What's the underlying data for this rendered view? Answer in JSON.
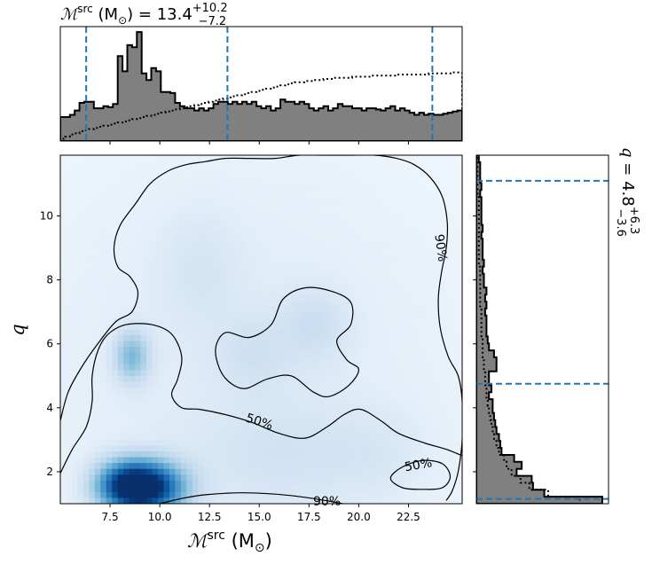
{
  "chart_data": {
    "type": "heatmap",
    "title": {
      "prefix": "ℳ",
      "sup": "src",
      "unit": " (M",
      "sun": "⊙",
      "close": ") = ",
      "value": "13.4",
      "plus": "+10.2",
      "minus": "−7.2"
    },
    "side_title": {
      "prefix": "q = ",
      "value": "4.8",
      "plus": "+6.3",
      "minus": "−3.6"
    },
    "xlabel": {
      "prefix": "ℳ",
      "sup": "src",
      "unit": " (M",
      "sun": "⊙",
      "close": ")"
    },
    "ylabel": "q",
    "xlim": [
      5.0,
      25.2
    ],
    "ylim": [
      1.0,
      11.9
    ],
    "xticks": [
      7.5,
      10.0,
      12.5,
      15.0,
      17.5,
      20.0,
      22.5
    ],
    "xtick_labels": [
      "7.5",
      "10.0",
      "12.5",
      "15.0",
      "17.5",
      "20.0",
      "22.5"
    ],
    "yticks": [
      2,
      4,
      6,
      8,
      10
    ],
    "ytick_labels": [
      "2",
      "4",
      "6",
      "8",
      "10"
    ],
    "colormap": [
      "#f7fbff",
      "#deebf7",
      "#c6dbef",
      "#9ecae1",
      "#6baed6",
      "#4292c6",
      "#2171b5",
      "#08519c",
      "#08306b"
    ],
    "density_blobs": [
      {
        "mc": 9.3,
        "q": 1.5,
        "smc": 1.3,
        "sq": 0.55,
        "amp": 1.0
      },
      {
        "mc": 8.2,
        "q": 1.6,
        "smc": 1.0,
        "sq": 0.5,
        "amp": 0.45
      },
      {
        "mc": 8.6,
        "q": 5.6,
        "smc": 0.6,
        "sq": 0.55,
        "amp": 0.33
      },
      {
        "mc": 17.8,
        "q": 6.6,
        "smc": 1.2,
        "sq": 0.8,
        "amp": 0.1
      },
      {
        "mc": 14.8,
        "q": 5.7,
        "smc": 1.3,
        "sq": 0.8,
        "amp": 0.08
      },
      {
        "mc": 12.0,
        "q": 8.4,
        "smc": 1.5,
        "sq": 1.3,
        "amp": 0.06
      },
      {
        "mc": 16.0,
        "q": 2.5,
        "smc": 3.0,
        "sq": 1.2,
        "amp": 0.07
      },
      {
        "mc": 21.0,
        "q": 2.5,
        "smc": 2.0,
        "sq": 1.0,
        "amp": 0.05
      }
    ],
    "density_floor": 0.08,
    "contour_labels": [
      {
        "text": "50%",
        "mc": 15.0,
        "q": 3.55,
        "rotate": 18
      },
      {
        "text": "50%",
        "mc": 23.0,
        "q": 2.2,
        "rotate": -10
      },
      {
        "text": "90%",
        "mc": 24.1,
        "q": 9.0,
        "rotate": 82
      },
      {
        "text": "90%",
        "mc": 18.4,
        "q": 1.05,
        "rotate": 0
      }
    ],
    "contours": [
      {
        "name": "contour-90-outer",
        "level": "90%",
        "closed": false,
        "points": [
          [
            5.0,
            3.6
          ],
          [
            5.4,
            4.5
          ],
          [
            6.1,
            5.3
          ],
          [
            7.0,
            6.1
          ],
          [
            7.8,
            6.7
          ],
          [
            8.6,
            7.0
          ],
          [
            8.9,
            7.6
          ],
          [
            8.5,
            8.1
          ],
          [
            7.9,
            8.4
          ],
          [
            7.7,
            9.0
          ],
          [
            8.0,
            9.7
          ],
          [
            8.8,
            10.4
          ],
          [
            9.5,
            11.0
          ],
          [
            10.4,
            11.4
          ],
          [
            11.3,
            11.6
          ],
          [
            12.3,
            11.7
          ],
          [
            13.3,
            11.8
          ],
          [
            14.5,
            11.8
          ],
          [
            15.8,
            11.8
          ],
          [
            17.0,
            11.9
          ],
          [
            18.3,
            11.9
          ],
          [
            19.5,
            11.9
          ],
          [
            20.8,
            11.9
          ],
          [
            21.9,
            11.8
          ],
          [
            22.8,
            11.6
          ],
          [
            23.6,
            11.2
          ],
          [
            24.2,
            10.6
          ],
          [
            24.45,
            9.8
          ],
          [
            24.4,
            9.0
          ],
          [
            24.15,
            8.2
          ],
          [
            24.0,
            7.4
          ],
          [
            24.1,
            6.5
          ],
          [
            24.5,
            5.6
          ],
          [
            25.0,
            5.0
          ],
          [
            25.2,
            4.2
          ],
          [
            25.2,
            3.0
          ],
          [
            25.0,
            2.0
          ],
          [
            24.7,
            1.4
          ],
          [
            24.4,
            1.1
          ]
        ]
      },
      {
        "name": "contour-90-bottom",
        "level": "90%",
        "closed": false,
        "points": [
          [
            10.0,
            1.0
          ],
          [
            11.0,
            1.15
          ],
          [
            12.3,
            1.28
          ],
          [
            14.0,
            1.34
          ],
          [
            15.8,
            1.3
          ],
          [
            17.3,
            1.2
          ],
          [
            18.5,
            1.08
          ],
          [
            19.2,
            1.0
          ]
        ]
      },
      {
        "name": "contour-50-left",
        "level": "50%",
        "closed": false,
        "points": [
          [
            5.0,
            1.95
          ],
          [
            5.6,
            2.7
          ],
          [
            6.3,
            3.4
          ],
          [
            6.6,
            4.2
          ],
          [
            6.6,
            5.0
          ],
          [
            6.9,
            5.8
          ],
          [
            7.4,
            6.3
          ],
          [
            8.3,
            6.6
          ],
          [
            9.6,
            6.6
          ],
          [
            10.6,
            6.3
          ],
          [
            11.1,
            5.6
          ],
          [
            10.9,
            4.9
          ],
          [
            10.6,
            4.4
          ],
          [
            11.1,
            4.0
          ],
          [
            12.0,
            3.95
          ],
          [
            13.2,
            3.8
          ],
          [
            14.6,
            3.55
          ],
          [
            16.0,
            3.2
          ],
          [
            17.3,
            3.05
          ],
          [
            18.4,
            3.4
          ],
          [
            19.3,
            3.8
          ],
          [
            20.1,
            3.95
          ],
          [
            21.1,
            3.6
          ],
          [
            22.0,
            3.2
          ],
          [
            23.3,
            2.9
          ],
          [
            24.4,
            2.7
          ],
          [
            25.2,
            2.5
          ]
        ]
      },
      {
        "name": "contour-50-middle",
        "level": "50%",
        "closed": true,
        "points": [
          [
            12.8,
            5.8
          ],
          [
            13.2,
            5.0
          ],
          [
            14.2,
            4.6
          ],
          [
            15.4,
            4.9
          ],
          [
            16.6,
            5.0
          ],
          [
            17.7,
            4.5
          ],
          [
            18.5,
            4.35
          ],
          [
            19.5,
            4.7
          ],
          [
            20.0,
            5.2
          ],
          [
            19.4,
            5.5
          ],
          [
            18.9,
            6.1
          ],
          [
            19.6,
            6.6
          ],
          [
            19.6,
            7.3
          ],
          [
            18.6,
            7.65
          ],
          [
            17.3,
            7.75
          ],
          [
            16.2,
            7.4
          ],
          [
            15.6,
            6.6
          ],
          [
            14.5,
            6.2
          ],
          [
            13.3,
            6.35
          ],
          [
            12.8,
            5.8
          ]
        ]
      },
      {
        "name": "contour-50-small",
        "level": "50%",
        "closed": true,
        "points": [
          [
            21.6,
            1.8
          ],
          [
            22.2,
            2.15
          ],
          [
            23.2,
            2.35
          ],
          [
            24.2,
            2.25
          ],
          [
            24.6,
            1.85
          ],
          [
            24.2,
            1.5
          ],
          [
            23.2,
            1.45
          ],
          [
            22.2,
            1.5
          ],
          [
            21.6,
            1.8
          ]
        ]
      }
    ],
    "top_hist": {
      "range": [
        5.0,
        25.2
      ],
      "posterior": [
        0.22,
        0.22,
        0.24,
        0.28,
        0.35,
        0.36,
        0.36,
        0.3,
        0.3,
        0.32,
        0.31,
        0.34,
        0.78,
        0.64,
        0.88,
        0.86,
        1.0,
        0.62,
        0.56,
        0.67,
        0.64,
        0.45,
        0.45,
        0.44,
        0.35,
        0.32,
        0.3,
        0.3,
        0.28,
        0.3,
        0.28,
        0.3,
        0.34,
        0.36,
        0.36,
        0.34,
        0.36,
        0.34,
        0.36,
        0.34,
        0.36,
        0.32,
        0.3,
        0.32,
        0.28,
        0.3,
        0.38,
        0.36,
        0.36,
        0.34,
        0.36,
        0.34,
        0.3,
        0.28,
        0.3,
        0.32,
        0.28,
        0.3,
        0.34,
        0.32,
        0.32,
        0.3,
        0.3,
        0.28,
        0.3,
        0.3,
        0.29,
        0.28,
        0.3,
        0.32,
        0.28,
        0.3,
        0.28,
        0.26,
        0.24,
        0.26,
        0.24,
        0.25,
        0.24,
        0.24,
        0.25,
        0.26,
        0.27,
        0.28
      ],
      "prior": [
        0.02,
        0.04,
        0.06,
        0.07,
        0.09,
        0.1,
        0.11,
        0.12,
        0.13,
        0.14,
        0.15,
        0.16,
        0.17,
        0.18,
        0.19,
        0.2,
        0.21,
        0.22,
        0.23,
        0.24,
        0.25,
        0.26,
        0.27,
        0.28,
        0.29,
        0.3,
        0.31,
        0.32,
        0.33,
        0.34,
        0.35,
        0.36,
        0.37,
        0.38,
        0.39,
        0.4,
        0.41,
        0.42,
        0.43,
        0.44,
        0.45,
        0.46,
        0.47,
        0.48,
        0.49,
        0.5,
        0.51,
        0.52,
        0.53,
        0.54,
        0.54,
        0.55,
        0.55,
        0.56,
        0.56,
        0.57,
        0.57,
        0.58,
        0.58,
        0.58,
        0.58,
        0.59,
        0.59,
        0.59,
        0.59,
        0.6,
        0.6,
        0.6,
        0.6,
        0.6,
        0.61,
        0.61,
        0.61,
        0.61,
        0.61,
        0.61,
        0.61,
        0.62,
        0.62,
        0.62,
        0.62,
        0.62,
        0.63,
        0.63
      ],
      "vlines": [
        6.3,
        13.4,
        23.7
      ],
      "ymax": 1.05
    },
    "right_hist": {
      "range": [
        1.0,
        11.9
      ],
      "posterior": [
        1.0,
        0.54,
        0.45,
        0.44,
        0.32,
        0.36,
        0.3,
        0.2,
        0.19,
        0.18,
        0.16,
        0.15,
        0.14,
        0.13,
        0.13,
        0.1,
        0.12,
        0.1,
        0.1,
        0.16,
        0.16,
        0.14,
        0.1,
        0.09,
        0.08,
        0.08,
        0.08,
        0.07,
        0.08,
        0.07,
        0.08,
        0.06,
        0.06,
        0.05,
        0.06,
        0.05,
        0.05,
        0.05,
        0.04,
        0.05,
        0.04,
        0.04,
        0.04,
        0.04,
        0.03,
        0.04,
        0.03,
        0.03,
        0.03,
        0.02
      ],
      "prior": [
        0.82,
        0.57,
        0.42,
        0.35,
        0.28,
        0.24,
        0.22,
        0.18,
        0.16,
        0.14,
        0.13,
        0.12,
        0.11,
        0.1,
        0.09,
        0.08,
        0.08,
        0.07,
        0.07,
        0.06,
        0.06,
        0.05,
        0.05,
        0.05,
        0.04,
        0.04,
        0.04,
        0.04,
        0.03,
        0.03,
        0.03,
        0.03,
        0.03,
        0.03,
        0.02,
        0.02,
        0.02,
        0.02,
        0.02,
        0.02,
        0.02,
        0.02,
        0.02,
        0.02,
        0.01,
        0.01,
        0.01,
        0.01,
        0.01,
        0.01
      ],
      "hlines": [
        1.15,
        4.75,
        11.1
      ],
      "xmax": 1.05
    },
    "colors": {
      "hist_fill": "#808080",
      "hist_edge": "#000000",
      "guide_line": "#1f77b4",
      "contour": "#000000"
    }
  }
}
